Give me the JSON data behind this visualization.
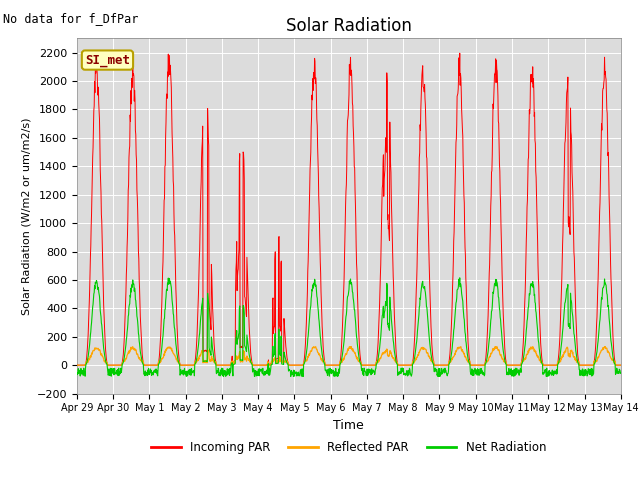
{
  "title": "Solar Radiation",
  "subtitle": "No data for f_DfPar",
  "xlabel": "Time",
  "ylabel": "Solar Radiation (W/m2 or um/m2/s)",
  "ylim": [
    -200,
    2300
  ],
  "yticks": [
    -200,
    0,
    200,
    400,
    600,
    800,
    1000,
    1200,
    1400,
    1600,
    1800,
    2000,
    2200
  ],
  "legend_labels": [
    "Incoming PAR",
    "Reflected PAR",
    "Net Radiation"
  ],
  "legend_colors": [
    "#ff0000",
    "#ffa500",
    "#00cc00"
  ],
  "box_label": "SI_met",
  "box_facecolor": "#ffffc0",
  "box_edgecolor": "#b8a000",
  "box_text_color": "#8b0000",
  "bg_color": "#dcdcdc",
  "n_days": 15,
  "x_tick_labels": [
    "Apr 29",
    "Apr 30",
    "May 1",
    "May 2",
    "May 3",
    "May 4",
    "May 5",
    "May 6",
    "May 7",
    "May 8",
    "May 9",
    "May 10",
    "May 11",
    "May 12",
    "May 13",
    "May 14"
  ]
}
